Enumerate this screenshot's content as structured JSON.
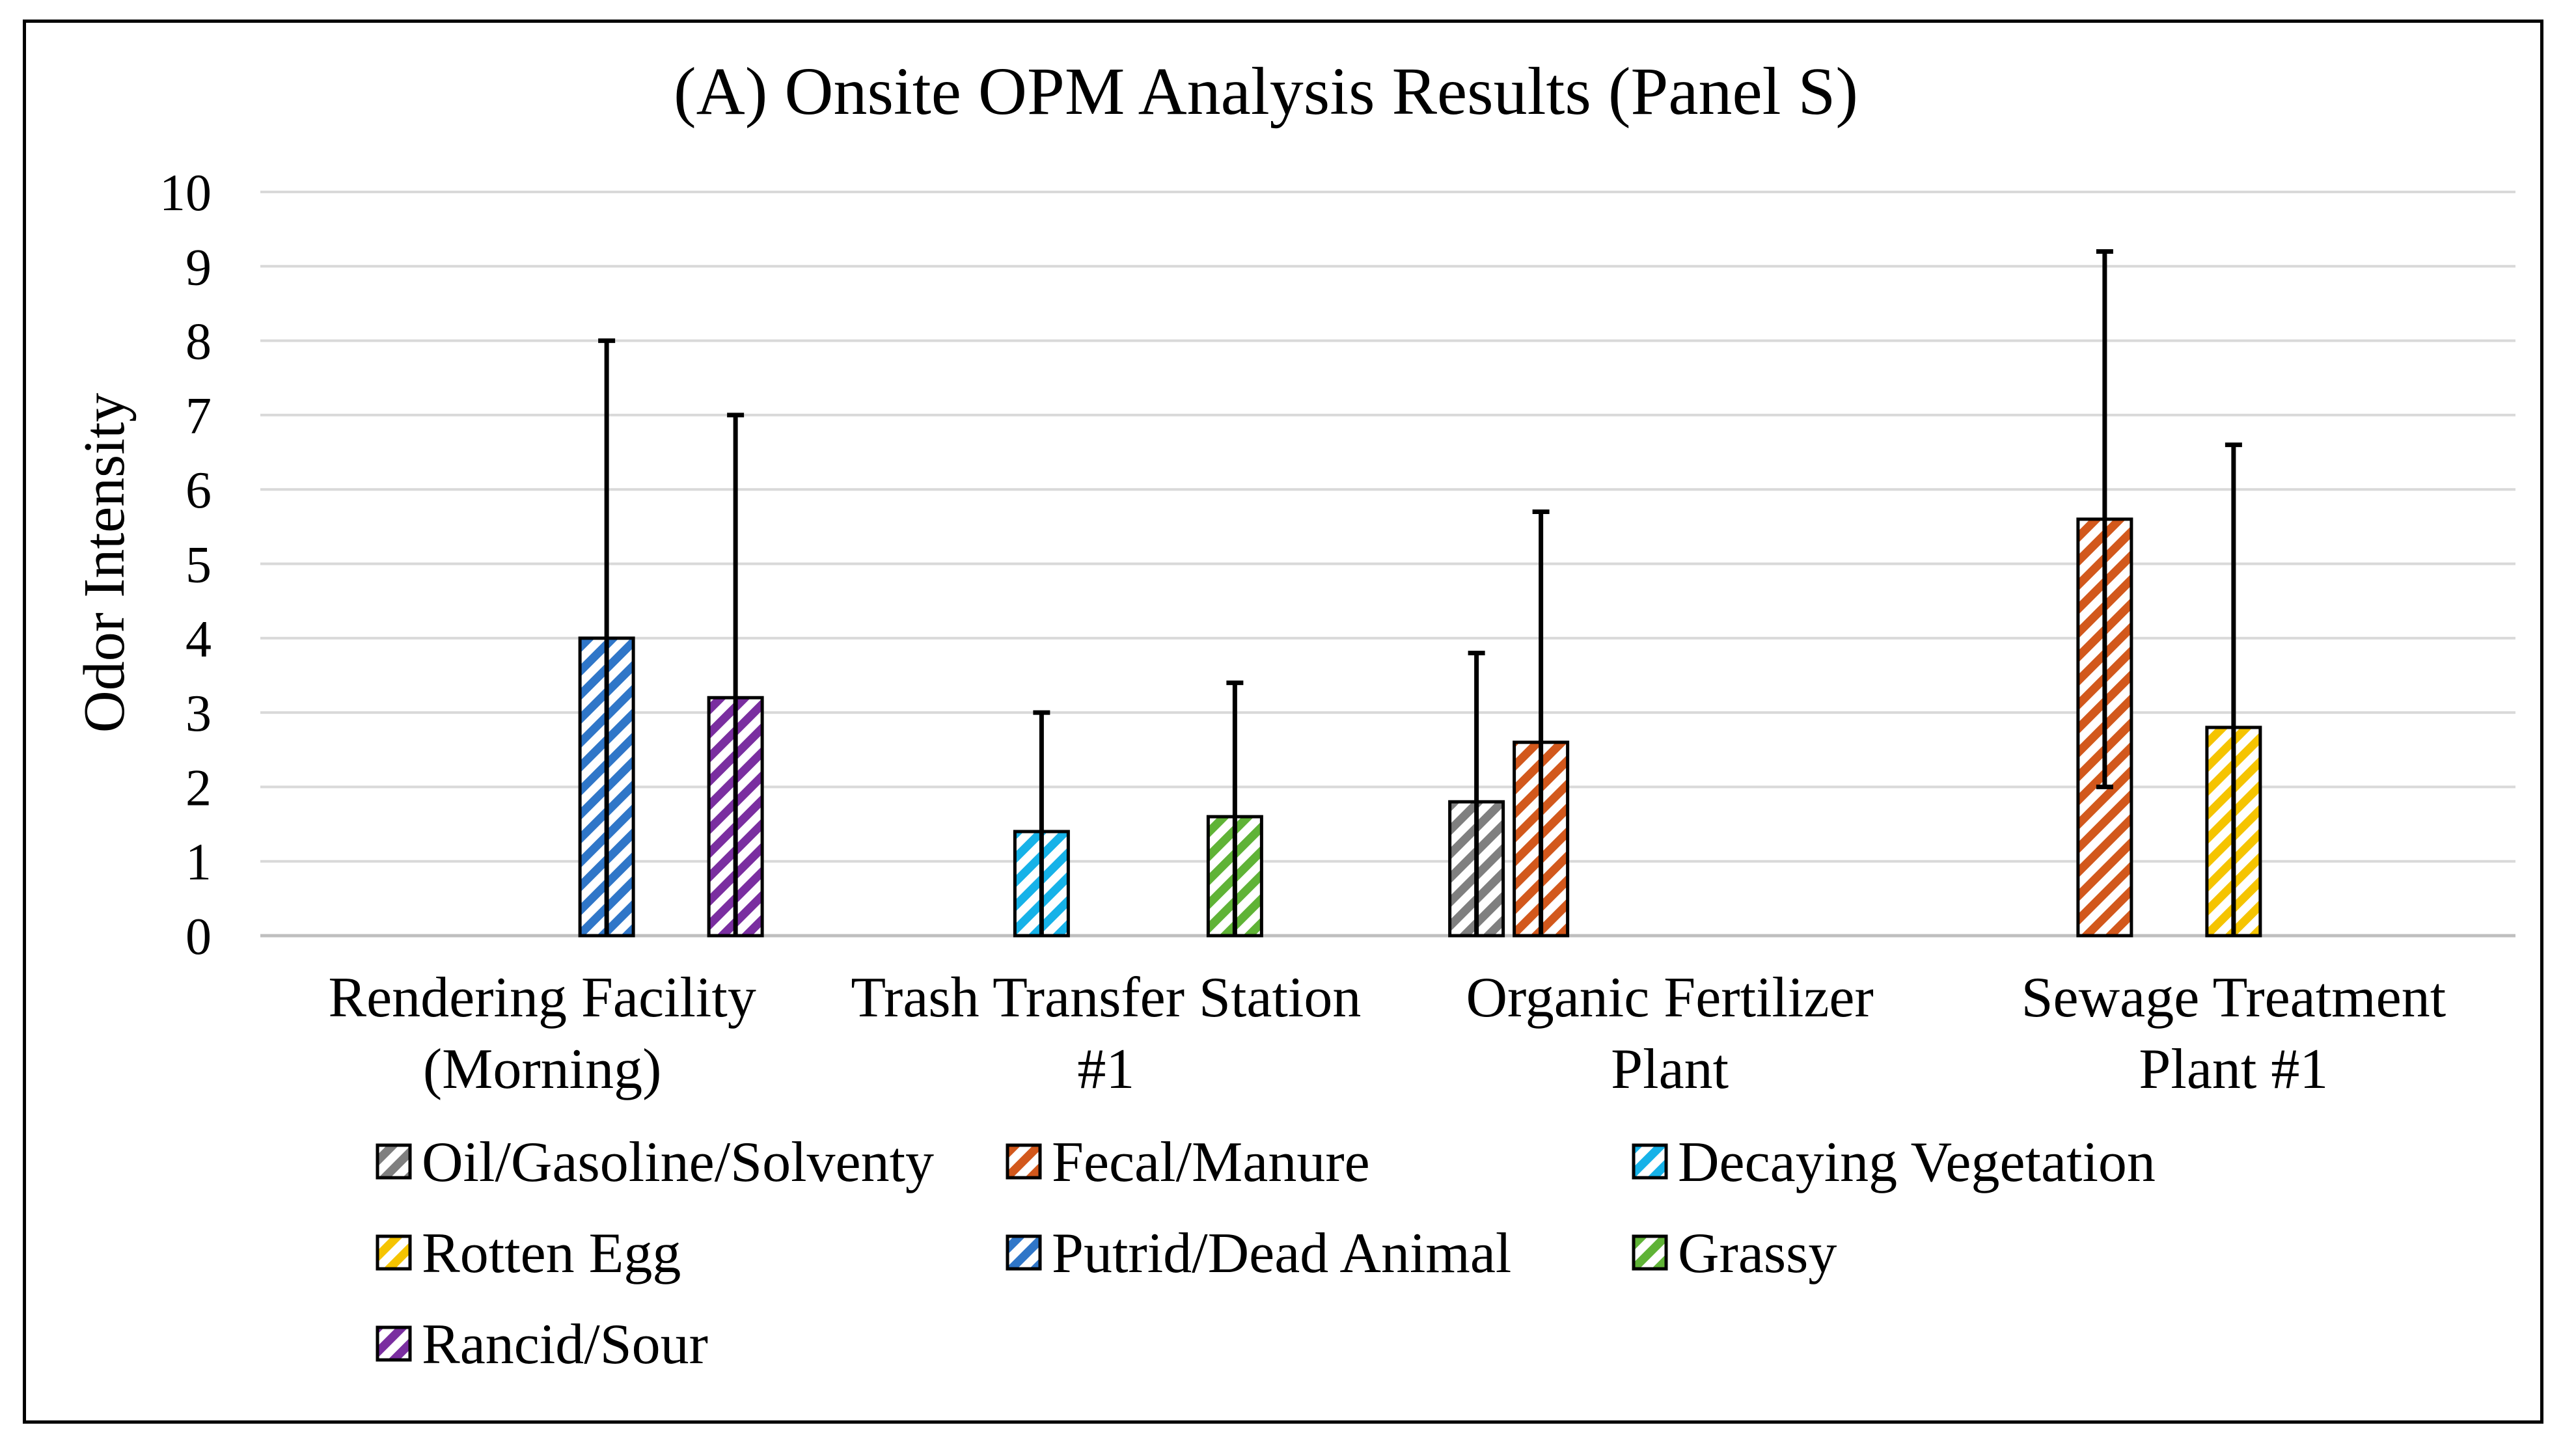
{
  "chart_data": {
    "type": "bar",
    "title": "(A) Onsite OPM Analysis Results (Panel S)",
    "xlabel": "",
    "ylabel": "Odor Intensity",
    "ylim": [
      0,
      10
    ],
    "yticks": [
      0,
      1,
      2,
      3,
      4,
      5,
      6,
      7,
      8,
      9,
      10
    ],
    "grid": true,
    "legend_position": "bottom",
    "categories": [
      [
        "Rendering Facility",
        "(Morning)"
      ],
      [
        "Trash Transfer Station",
        "#1"
      ],
      [
        "Organic Fertilizer",
        "Plant"
      ],
      [
        "Sewage Treatment",
        "Plant #1"
      ]
    ],
    "series": [
      {
        "name": "Oil/Gasoline/Solventy",
        "color": "#7f7f7f",
        "values": [
          null,
          null,
          1.8,
          null
        ],
        "error_upper": [
          null,
          null,
          3.8,
          null
        ],
        "error_lower": [
          null,
          null,
          0,
          null
        ]
      },
      {
        "name": "Fecal/Manure",
        "color": "#d2581c",
        "values": [
          null,
          null,
          2.6,
          5.6
        ],
        "error_upper": [
          null,
          null,
          5.7,
          9.2
        ],
        "error_lower": [
          null,
          null,
          0,
          2.0
        ]
      },
      {
        "name": "Decaying Vegetation",
        "color": "#16b2e8",
        "values": [
          null,
          1.4,
          null,
          null
        ],
        "error_upper": [
          null,
          3.0,
          null,
          null
        ],
        "error_lower": [
          null,
          0,
          null,
          null
        ]
      },
      {
        "name": "Rotten Egg",
        "color": "#f5c400",
        "values": [
          null,
          null,
          null,
          2.8
        ],
        "error_upper": [
          null,
          null,
          null,
          6.6
        ],
        "error_lower": [
          null,
          null,
          null,
          0
        ]
      },
      {
        "name": "Putrid/Dead Animal",
        "color": "#2f76c8",
        "values": [
          4.0,
          null,
          null,
          null
        ],
        "error_upper": [
          8.0,
          null,
          null,
          null
        ],
        "error_lower": [
          0,
          null,
          null,
          null
        ]
      },
      {
        "name": "Grassy",
        "color": "#5fb336",
        "values": [
          null,
          1.6,
          null,
          null
        ],
        "error_upper": [
          null,
          3.4,
          null,
          null
        ],
        "error_lower": [
          null,
          0,
          null,
          null
        ]
      },
      {
        "name": "Rancid/Sour",
        "color": "#7a2ea0",
        "values": [
          3.2,
          null,
          null,
          null
        ],
        "error_upper": [
          7.0,
          null,
          null,
          null
        ],
        "error_lower": [
          0,
          null,
          null,
          null
        ]
      }
    ]
  }
}
